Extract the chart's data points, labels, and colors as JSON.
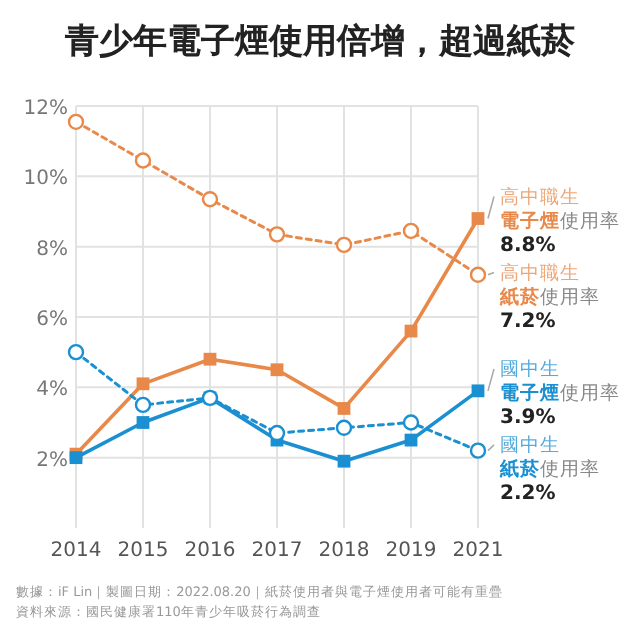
{
  "chart_data": {
    "type": "line",
    "title": "青少年電子煙使用倍增，超過紙菸",
    "categories": [
      "2014",
      "2015",
      "2016",
      "2017",
      "2018",
      "2019",
      "2021"
    ],
    "ylim": [
      0,
      12
    ],
    "yticks": [
      {
        "value": 2,
        "label": "2%"
      },
      {
        "value": 4,
        "label": "4%"
      },
      {
        "value": 6,
        "label": "6%"
      },
      {
        "value": 8,
        "label": "8%"
      },
      {
        "value": 10,
        "label": "10%"
      },
      {
        "value": 12,
        "label": "12%"
      }
    ],
    "grid": true,
    "legend": false,
    "series": [
      {
        "name": "高中職生**電子煙**使用率",
        "color": "#e8894a",
        "marker": "square",
        "line_style": "solid",
        "values": [
          2.1,
          4.1,
          4.8,
          4.5,
          3.4,
          5.6,
          8.8
        ],
        "value_labels": [
          null,
          null,
          null,
          null,
          null,
          null,
          "8.8%"
        ]
      },
      {
        "name": "高中職生**紙菸**使用率",
        "color": "#e8894a",
        "marker": "circle",
        "line_style": "dotted",
        "values": [
          11.55,
          10.45,
          9.35,
          8.35,
          8.05,
          8.45,
          7.2
        ],
        "value_labels": [
          null,
          null,
          null,
          null,
          null,
          null,
          "7.2%"
        ]
      },
      {
        "name": "國中生**電子煙**使用率",
        "color": "#1a8fd1",
        "marker": "square",
        "line_style": "solid",
        "values": [
          2.0,
          3.0,
          3.7,
          2.5,
          1.9,
          2.5,
          3.9
        ],
        "value_labels": [
          null,
          null,
          null,
          null,
          null,
          null,
          "3.9%"
        ]
      },
      {
        "name": "國中生**紙菸**使用率",
        "color": "#1a8fd1",
        "marker": "circle",
        "line_style": "dotted",
        "values": [
          5.0,
          3.5,
          3.7,
          2.7,
          2.85,
          3.0,
          2.2
        ],
        "value_labels": [
          null,
          null,
          null,
          null,
          null,
          null,
          "2.2%"
        ]
      }
    ],
    "annotations": [
      "數據：iF Lin｜製圖日期：2022.08.20｜紙菸使用者與電子煙使用者可能有重疊",
      "資料來源：國民健康署110年青少年吸菸行為調查"
    ]
  }
}
